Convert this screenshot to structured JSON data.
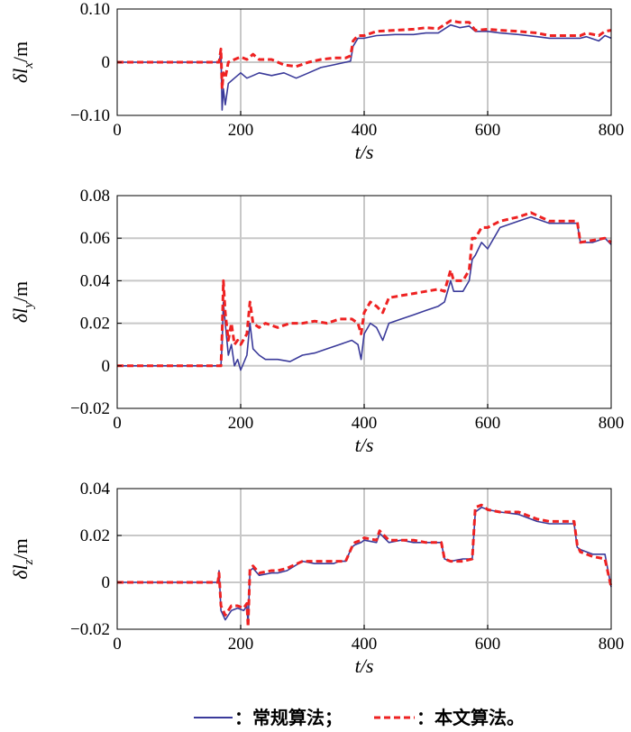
{
  "chart_data": [
    {
      "type": "line",
      "xlabel": "t/s",
      "ylabel": "δlx/m",
      "ylabel_sub": "x",
      "xlim": [
        0,
        800
      ],
      "ylim": [
        -0.1,
        0.1
      ],
      "xticks": [
        0,
        200,
        400,
        600,
        800
      ],
      "xtick_labels": [
        "0",
        "200",
        "400",
        "600",
        "800"
      ],
      "yticks": [
        -0.1,
        0,
        0.1
      ],
      "ytick_labels": [
        "−0.10",
        "0",
        "0.10"
      ],
      "grid": true,
      "series": [
        {
          "name": "常规算法",
          "color": "#3a3a9a",
          "style": "solid",
          "x": [
            0,
            165,
            168,
            170,
            172,
            175,
            180,
            190,
            200,
            210,
            220,
            230,
            250,
            270,
            290,
            310,
            330,
            350,
            370,
            378,
            382,
            390,
            400,
            420,
            450,
            480,
            500,
            520,
            540,
            555,
            570,
            580,
            600,
            620,
            650,
            680,
            700,
            720,
            750,
            760,
            780,
            790,
            800
          ],
          "y": [
            0,
            0,
            0.02,
            -0.09,
            -0.05,
            -0.08,
            -0.04,
            -0.03,
            -0.02,
            -0.03,
            -0.025,
            -0.02,
            -0.025,
            -0.02,
            -0.03,
            -0.02,
            -0.01,
            -0.005,
            0,
            0.002,
            0.03,
            0.045,
            0.045,
            0.05,
            0.052,
            0.052,
            0.055,
            0.055,
            0.07,
            0.065,
            0.068,
            0.058,
            0.058,
            0.055,
            0.052,
            0.048,
            0.045,
            0.045,
            0.045,
            0.048,
            0.04,
            0.05,
            0.045
          ]
        },
        {
          "name": "本文算法",
          "color": "#ee2222",
          "style": "dashed",
          "x": [
            0,
            165,
            168,
            170,
            172,
            175,
            180,
            190,
            200,
            210,
            220,
            230,
            250,
            270,
            290,
            310,
            330,
            350,
            370,
            378,
            382,
            390,
            400,
            420,
            450,
            480,
            500,
            520,
            540,
            555,
            570,
            580,
            600,
            620,
            650,
            680,
            700,
            720,
            750,
            760,
            780,
            790,
            800
          ],
          "y": [
            0,
            0,
            0.025,
            -0.05,
            -0.02,
            -0.03,
            0,
            0.005,
            0.01,
            0.005,
            0.015,
            0.005,
            0.005,
            -0.005,
            -0.008,
            0,
            0.005,
            0.008,
            0.008,
            0.012,
            0.04,
            0.05,
            0.05,
            0.058,
            0.06,
            0.062,
            0.065,
            0.063,
            0.078,
            0.075,
            0.075,
            0.06,
            0.062,
            0.06,
            0.058,
            0.055,
            0.05,
            0.05,
            0.05,
            0.055,
            0.05,
            0.058,
            0.06
          ]
        }
      ]
    },
    {
      "type": "line",
      "xlabel": "t/s",
      "ylabel": "δly/m",
      "ylabel_sub": "y",
      "xlim": [
        0,
        800
      ],
      "ylim": [
        -0.02,
        0.08
      ],
      "xticks": [
        0,
        200,
        400,
        600,
        800
      ],
      "xtick_labels": [
        "0",
        "200",
        "400",
        "600",
        "800"
      ],
      "yticks": [
        -0.02,
        0,
        0.02,
        0.04,
        0.06,
        0.08
      ],
      "ytick_labels": [
        "−0.02",
        "0",
        "0.02",
        "0.04",
        "0.06",
        "0.08"
      ],
      "grid": true,
      "series": [
        {
          "name": "常规算法",
          "color": "#3a3a9a",
          "style": "solid",
          "x": [
            0,
            168,
            170,
            172,
            175,
            180,
            185,
            190,
            195,
            200,
            210,
            215,
            220,
            230,
            240,
            260,
            280,
            300,
            320,
            340,
            360,
            380,
            390,
            395,
            400,
            410,
            420,
            430,
            440,
            460,
            480,
            500,
            520,
            530,
            540,
            545,
            560,
            570,
            575,
            580,
            590,
            600,
            620,
            650,
            670,
            700,
            720,
            745,
            750,
            770,
            790,
            800
          ],
          "y": [
            0,
            0,
            0.01,
            0.03,
            0.02,
            0.005,
            0.01,
            0,
            0.003,
            -0.002,
            0.005,
            0.02,
            0.008,
            0.005,
            0.003,
            0.003,
            0.002,
            0.005,
            0.006,
            0.008,
            0.01,
            0.012,
            0.01,
            0.003,
            0.015,
            0.02,
            0.018,
            0.012,
            0.02,
            0.022,
            0.024,
            0.026,
            0.028,
            0.03,
            0.04,
            0.035,
            0.035,
            0.04,
            0.05,
            0.052,
            0.058,
            0.055,
            0.065,
            0.068,
            0.07,
            0.067,
            0.067,
            0.067,
            0.058,
            0.058,
            0.06,
            0.057
          ]
        },
        {
          "name": "本文算法",
          "color": "#ee2222",
          "style": "dashed",
          "x": [
            0,
            168,
            170,
            172,
            175,
            180,
            185,
            190,
            195,
            200,
            210,
            215,
            220,
            230,
            240,
            260,
            280,
            300,
            320,
            340,
            360,
            380,
            390,
            395,
            400,
            410,
            420,
            430,
            440,
            460,
            480,
            500,
            520,
            530,
            540,
            545,
            560,
            570,
            575,
            580,
            590,
            600,
            620,
            650,
            670,
            700,
            720,
            745,
            750,
            770,
            790,
            800
          ],
          "y": [
            0,
            0,
            0.015,
            0.04,
            0.025,
            0.012,
            0.02,
            0.01,
            0.012,
            0.01,
            0.015,
            0.03,
            0.02,
            0.018,
            0.02,
            0.018,
            0.02,
            0.02,
            0.021,
            0.02,
            0.022,
            0.022,
            0.02,
            0.015,
            0.025,
            0.03,
            0.028,
            0.025,
            0.032,
            0.033,
            0.034,
            0.035,
            0.036,
            0.035,
            0.045,
            0.04,
            0.04,
            0.045,
            0.06,
            0.06,
            0.065,
            0.065,
            0.068,
            0.07,
            0.072,
            0.068,
            0.068,
            0.068,
            0.058,
            0.059,
            0.06,
            0.058
          ]
        }
      ]
    },
    {
      "type": "line",
      "xlabel": "t/s",
      "ylabel": "δlz/m",
      "ylabel_sub": "z",
      "xlim": [
        0,
        800
      ],
      "ylim": [
        -0.02,
        0.04
      ],
      "xticks": [
        0,
        200,
        400,
        600,
        800
      ],
      "xtick_labels": [
        "0",
        "200",
        "400",
        "600",
        "800"
      ],
      "yticks": [
        -0.02,
        0,
        0.02,
        0.04
      ],
      "ytick_labels": [
        "−0.02",
        "0",
        "0.02",
        "0.04"
      ],
      "grid": true,
      "series": [
        {
          "name": "常规算法",
          "color": "#3a3a9a",
          "style": "solid",
          "x": [
            0,
            163,
            165,
            168,
            175,
            185,
            195,
            205,
            210,
            212,
            215,
            220,
            230,
            250,
            260,
            275,
            300,
            320,
            340,
            350,
            360,
            370,
            380,
            385,
            395,
            400,
            420,
            425,
            440,
            460,
            480,
            500,
            525,
            530,
            540,
            560,
            575,
            580,
            590,
            600,
            620,
            650,
            680,
            700,
            740,
            745,
            750,
            770,
            790,
            800
          ],
          "y": [
            0,
            0,
            0.005,
            -0.012,
            -0.016,
            -0.012,
            -0.011,
            -0.012,
            -0.01,
            -0.018,
            0.005,
            0.006,
            0.003,
            0.004,
            0.004,
            0.005,
            0.009,
            0.008,
            0.008,
            0.008,
            0.009,
            0.009,
            0.015,
            0.016,
            0.017,
            0.018,
            0.017,
            0.021,
            0.017,
            0.018,
            0.017,
            0.017,
            0.017,
            0.01,
            0.009,
            0.01,
            0.01,
            0.03,
            0.032,
            0.031,
            0.03,
            0.029,
            0.026,
            0.025,
            0.025,
            0.015,
            0.014,
            0.012,
            0.012,
            -0.002
          ]
        },
        {
          "name": "本文算法",
          "color": "#ee2222",
          "style": "dashed",
          "x": [
            0,
            163,
            165,
            168,
            175,
            185,
            195,
            205,
            210,
            212,
            215,
            220,
            230,
            250,
            260,
            275,
            300,
            320,
            340,
            350,
            360,
            370,
            380,
            385,
            395,
            400,
            420,
            425,
            440,
            460,
            480,
            500,
            525,
            530,
            540,
            560,
            575,
            580,
            590,
            600,
            620,
            650,
            680,
            700,
            740,
            745,
            750,
            770,
            790,
            800
          ],
          "y": [
            0,
            0,
            0.004,
            -0.01,
            -0.014,
            -0.01,
            -0.01,
            -0.011,
            -0.009,
            -0.019,
            0.006,
            0.007,
            0.004,
            0.005,
            0.005,
            0.006,
            0.009,
            0.009,
            0.009,
            0.009,
            0.009,
            0.009,
            0.015,
            0.017,
            0.018,
            0.019,
            0.018,
            0.022,
            0.018,
            0.018,
            0.018,
            0.017,
            0.017,
            0.01,
            0.009,
            0.009,
            0.01,
            0.032,
            0.033,
            0.031,
            0.03,
            0.03,
            0.027,
            0.026,
            0.026,
            0.016,
            0.013,
            0.011,
            0.01,
            -0.002
          ]
        }
      ]
    }
  ],
  "legend": {
    "items": [
      {
        "label": "：常规算法；",
        "color": "#3a3a9a",
        "style": "solid"
      },
      {
        "label": "：本文算法。",
        "color": "#ee2222",
        "style": "dashed"
      }
    ]
  }
}
